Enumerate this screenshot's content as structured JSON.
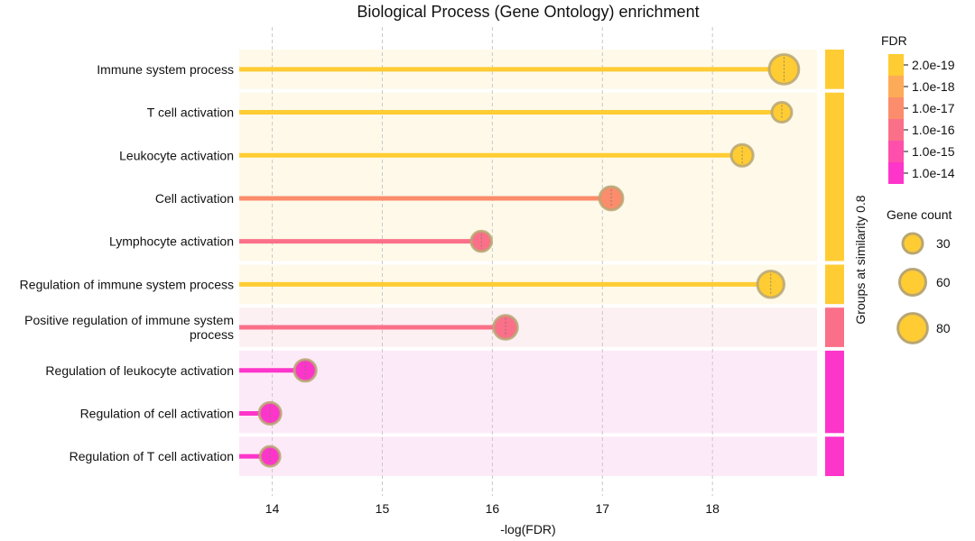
{
  "chart_data": {
    "type": "lollipop",
    "title": "Biological Process (Gene Ontology) enrichment",
    "xlabel": "-log(FDR)",
    "xlim": [
      13.7,
      18.95
    ],
    "xticks": [
      14,
      15,
      16,
      17,
      18
    ],
    "grid": true,
    "categories": [
      {
        "label": [
          "Immune system process"
        ],
        "x": 18.65,
        "gene_count": 80,
        "color": "#ffcc33"
      },
      {
        "label": [
          "T cell activation"
        ],
        "x": 18.63,
        "gene_count": 30,
        "color": "#ffcc33"
      },
      {
        "label": [
          "Leukocyte activation"
        ],
        "x": 18.27,
        "gene_count": 38,
        "color": "#ffcc33"
      },
      {
        "label": [
          "Cell activation"
        ],
        "x": 17.08,
        "gene_count": 45,
        "color": "#fb8c6c"
      },
      {
        "label": [
          "Lymphocyte activation"
        ],
        "x": 15.9,
        "gene_count": 32,
        "color": "#fb7089"
      },
      {
        "label": [
          "Regulation of immune system process"
        ],
        "x": 18.53,
        "gene_count": 62,
        "color": "#ffcc33"
      },
      {
        "label": [
          "Positive regulation of immune system",
          "process"
        ],
        "x": 16.12,
        "gene_count": 48,
        "color": "#fb7089"
      },
      {
        "label": [
          "Regulation of leukocyte activation"
        ],
        "x": 14.3,
        "gene_count": 38,
        "color": "#fe35ca"
      },
      {
        "label": [
          "Regulation of cell activation"
        ],
        "x": 13.98,
        "gene_count": 38,
        "color": "#fe35ca"
      },
      {
        "label": [
          "Regulation of T cell activation"
        ],
        "x": 13.98,
        "gene_count": 30,
        "color": "#fe35ca"
      }
    ],
    "groups": {
      "title": "Groups at similarity 0.8",
      "items": [
        {
          "rows": [
            0,
            0
          ],
          "color": "#ffcc33",
          "bg": "#fef9e9"
        },
        {
          "rows": [
            1,
            4
          ],
          "color": "#ffcc33",
          "bg": "#fef9e9"
        },
        {
          "rows": [
            5,
            5
          ],
          "color": "#ffcc33",
          "bg": "#fef9e9"
        },
        {
          "rows": [
            6,
            6
          ],
          "color": "#fb7089",
          "bg": "#fdf0f3"
        },
        {
          "rows": [
            7,
            8
          ],
          "color": "#fe35ca",
          "bg": "#fdeaf8"
        },
        {
          "rows": [
            9,
            9
          ],
          "color": "#fe35ca",
          "bg": "#fdeaf8"
        }
      ]
    },
    "fdr_legend": {
      "title": "FDR",
      "entries": [
        {
          "label": "2.0e-19",
          "color": "#ffcc33"
        },
        {
          "label": "1.0e-18",
          "color": "#fdaa59"
        },
        {
          "label": "1.0e-17",
          "color": "#fb8c6c"
        },
        {
          "label": "1.0e-16",
          "color": "#fb7089"
        },
        {
          "label": "1.0e-15",
          "color": "#fd4fab"
        },
        {
          "label": "1.0e-14",
          "color": "#fe35ca"
        }
      ]
    },
    "size_legend": {
      "title": "Gene count",
      "entries": [
        30,
        60,
        80
      ]
    }
  }
}
